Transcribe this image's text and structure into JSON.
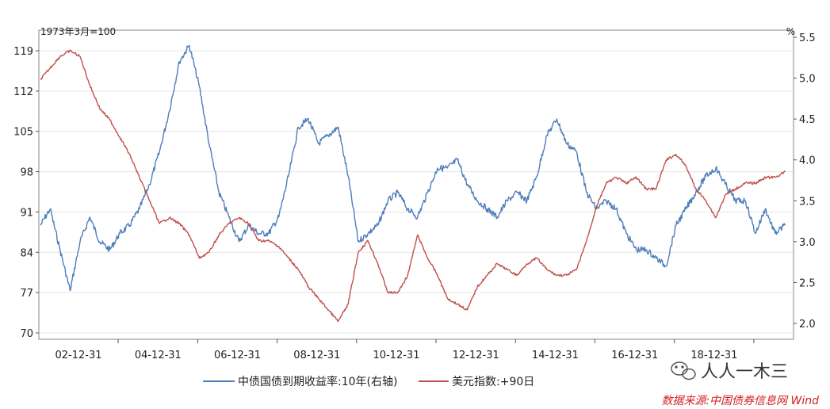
{
  "chart_data": {
    "type": "line",
    "left_axis_unit": "1973年3月=100",
    "right_axis_unit": "%",
    "left_axis": {
      "ylim": [
        70,
        120
      ],
      "ticks": [
        70,
        77,
        84,
        91,
        98,
        105,
        112,
        119
      ]
    },
    "right_axis": {
      "ylim": [
        1.95,
        5.5
      ],
      "ticks": [
        "2.0",
        "2.5",
        "3.0",
        "3.5",
        "4.0",
        "4.5",
        "5.0",
        "5.5"
      ]
    },
    "x_axis": {
      "range": [
        "2001-01-01",
        "2019-12-31"
      ],
      "ticks": [
        "02-12-31",
        "04-12-31",
        "06-12-31",
        "08-12-31",
        "10-12-31",
        "12-12-31",
        "14-12-31",
        "16-12-31",
        "18-12-31"
      ]
    },
    "grid": true,
    "legend_position": "bottom",
    "series": [
      {
        "name": "中债国债到期收益率:10年(右轴)",
        "axis": "right",
        "color": "#4f7dba",
        "points": [
          [
            "2001-01",
            3.2
          ],
          [
            "2001-04",
            3.4
          ],
          [
            "2001-07",
            2.9
          ],
          [
            "2001-10",
            2.4
          ],
          [
            "2002-01",
            3.0
          ],
          [
            "2002-04",
            3.3
          ],
          [
            "2002-07",
            3.0
          ],
          [
            "2002-10",
            2.9
          ],
          [
            "2003-01",
            3.1
          ],
          [
            "2003-04",
            3.2
          ],
          [
            "2003-07",
            3.4
          ],
          [
            "2003-10",
            3.7
          ],
          [
            "2004-01",
            4.1
          ],
          [
            "2004-04",
            4.6
          ],
          [
            "2004-07",
            5.2
          ],
          [
            "2004-10",
            5.4
          ],
          [
            "2005-01",
            4.9
          ],
          [
            "2005-04",
            4.2
          ],
          [
            "2005-07",
            3.6
          ],
          [
            "2005-10",
            3.3
          ],
          [
            "2006-01",
            3.0
          ],
          [
            "2006-04",
            3.2
          ],
          [
            "2006-07",
            3.1
          ],
          [
            "2006-10",
            3.1
          ],
          [
            "2007-01",
            3.3
          ],
          [
            "2007-04",
            3.8
          ],
          [
            "2007-07",
            4.4
          ],
          [
            "2007-10",
            4.5
          ],
          [
            "2008-01",
            4.2
          ],
          [
            "2008-04",
            4.3
          ],
          [
            "2008-07",
            4.4
          ],
          [
            "2008-10",
            3.8
          ],
          [
            "2009-01",
            3.0
          ],
          [
            "2009-04",
            3.1
          ],
          [
            "2009-07",
            3.2
          ],
          [
            "2009-10",
            3.5
          ],
          [
            "2010-01",
            3.6
          ],
          [
            "2010-04",
            3.4
          ],
          [
            "2010-07",
            3.3
          ],
          [
            "2010-10",
            3.6
          ],
          [
            "2011-01",
            3.9
          ],
          [
            "2011-04",
            3.9
          ],
          [
            "2011-07",
            4.0
          ],
          [
            "2011-10",
            3.7
          ],
          [
            "2012-01",
            3.5
          ],
          [
            "2012-04",
            3.4
          ],
          [
            "2012-07",
            3.3
          ],
          [
            "2012-10",
            3.5
          ],
          [
            "2013-01",
            3.6
          ],
          [
            "2013-04",
            3.5
          ],
          [
            "2013-07",
            3.8
          ],
          [
            "2013-10",
            4.3
          ],
          [
            "2014-01",
            4.5
          ],
          [
            "2014-04",
            4.2
          ],
          [
            "2014-07",
            4.1
          ],
          [
            "2014-10",
            3.6
          ],
          [
            "2015-01",
            3.4
          ],
          [
            "2015-04",
            3.5
          ],
          [
            "2015-07",
            3.4
          ],
          [
            "2015-10",
            3.1
          ],
          [
            "2016-01",
            2.9
          ],
          [
            "2016-04",
            2.9
          ],
          [
            "2016-07",
            2.8
          ],
          [
            "2016-10",
            2.7
          ],
          [
            "2017-01",
            3.2
          ],
          [
            "2017-04",
            3.4
          ],
          [
            "2017-07",
            3.6
          ],
          [
            "2017-10",
            3.8
          ],
          [
            "2018-01",
            3.9
          ],
          [
            "2018-04",
            3.7
          ],
          [
            "2018-07",
            3.5
          ],
          [
            "2018-10",
            3.5
          ],
          [
            "2019-01",
            3.1
          ],
          [
            "2019-04",
            3.4
          ],
          [
            "2019-07",
            3.1
          ],
          [
            "2019-10",
            3.2
          ]
        ]
      },
      {
        "name": "美元指数:+90日",
        "axis": "left",
        "color": "#c0504d",
        "points": [
          [
            "2001-01",
            114
          ],
          [
            "2001-04",
            116
          ],
          [
            "2001-07",
            118
          ],
          [
            "2001-10",
            119
          ],
          [
            "2002-01",
            118
          ],
          [
            "2002-04",
            113
          ],
          [
            "2002-07",
            109
          ],
          [
            "2002-10",
            107
          ],
          [
            "2003-01",
            104
          ],
          [
            "2003-04",
            101
          ],
          [
            "2003-07",
            97
          ],
          [
            "2003-10",
            93
          ],
          [
            "2004-01",
            89
          ],
          [
            "2004-04",
            90
          ],
          [
            "2004-07",
            89
          ],
          [
            "2004-10",
            87
          ],
          [
            "2005-01",
            83
          ],
          [
            "2005-04",
            84
          ],
          [
            "2005-07",
            87
          ],
          [
            "2005-10",
            89
          ],
          [
            "2006-01",
            90
          ],
          [
            "2006-04",
            89
          ],
          [
            "2006-07",
            86
          ],
          [
            "2006-10",
            86
          ],
          [
            "2007-01",
            85
          ],
          [
            "2007-04",
            83
          ],
          [
            "2007-07",
            81
          ],
          [
            "2007-10",
            78
          ],
          [
            "2008-01",
            76
          ],
          [
            "2008-04",
            74
          ],
          [
            "2008-07",
            72
          ],
          [
            "2008-10",
            75
          ],
          [
            "2009-01",
            84
          ],
          [
            "2009-04",
            86
          ],
          [
            "2009-07",
            82
          ],
          [
            "2009-10",
            77
          ],
          [
            "2010-01",
            77
          ],
          [
            "2010-04",
            80
          ],
          [
            "2010-07",
            87
          ],
          [
            "2010-10",
            83
          ],
          [
            "2011-01",
            80
          ],
          [
            "2011-04",
            76
          ],
          [
            "2011-07",
            75
          ],
          [
            "2011-10",
            74
          ],
          [
            "2012-01",
            78
          ],
          [
            "2012-04",
            80
          ],
          [
            "2012-07",
            82
          ],
          [
            "2012-10",
            81
          ],
          [
            "2013-01",
            80
          ],
          [
            "2013-04",
            82
          ],
          [
            "2013-07",
            83
          ],
          [
            "2013-10",
            81
          ],
          [
            "2014-01",
            80
          ],
          [
            "2014-04",
            80
          ],
          [
            "2014-07",
            81
          ],
          [
            "2014-10",
            86
          ],
          [
            "2015-01",
            92
          ],
          [
            "2015-04",
            96
          ],
          [
            "2015-07",
            97
          ],
          [
            "2015-10",
            96
          ],
          [
            "2016-01",
            97
          ],
          [
            "2016-04",
            95
          ],
          [
            "2016-07",
            95
          ],
          [
            "2016-10",
            100
          ],
          [
            "2017-01",
            101
          ],
          [
            "2017-04",
            99
          ],
          [
            "2017-07",
            95
          ],
          [
            "2017-10",
            93
          ],
          [
            "2018-01",
            90
          ],
          [
            "2018-04",
            94
          ],
          [
            "2018-07",
            95
          ],
          [
            "2018-10",
            96
          ],
          [
            "2019-01",
            96
          ],
          [
            "2019-04",
            97
          ],
          [
            "2019-07",
            97
          ],
          [
            "2019-10",
            98
          ]
        ]
      }
    ]
  },
  "watermark": {
    "text": "人人一木三",
    "icon": "wechat-icon"
  },
  "source": {
    "text": "数据来源:中国债券信息网 Wind"
  }
}
